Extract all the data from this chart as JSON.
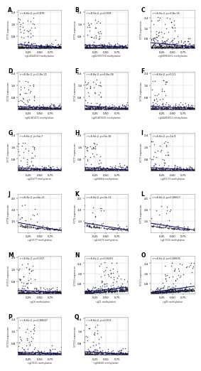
{
  "panels": [
    {
      "label": "A",
      "ann": "r²=6.6e-2, p=0.076",
      "xlabel": "cg14044540 methylation",
      "ylabel": "SYT1 expression",
      "pattern": "bottom_cluster",
      "n": 370,
      "seed": 1
    },
    {
      "label": "B",
      "ann": "r²=8.0e-2, p=0.039",
      "xlabel": "cg02393758 methylation",
      "ylabel": "SYT1 expression",
      "pattern": "bottom_cluster",
      "n": 340,
      "seed": 2
    },
    {
      "label": "C",
      "ann": "r²=6.6e-2, p=6.8e-16",
      "xlabel": "cg04991631 methylation",
      "ylabel": "SYT1 expression",
      "pattern": "spread_neg",
      "n": 370,
      "seed": 3
    },
    {
      "label": "D",
      "ann": "r²=6.4e-2, p=1.0e-11",
      "xlabel": "cg01481471 methylation",
      "ylabel": "SYT4 expression",
      "pattern": "bottom_cluster",
      "n": 340,
      "seed": 4
    },
    {
      "label": "E",
      "ann": "r²=6.6e-2, p=4.6e-06",
      "xlabel": "cg01481635 methylation",
      "ylabel": "SYT4 expression",
      "pattern": "bottom_cluster",
      "n": 340,
      "seed": 5
    },
    {
      "label": "F",
      "ann": "r²=6.6e-2, p=0.11",
      "xlabel": "cg04491651 methylation",
      "ylabel": "SYT4 expression",
      "pattern": "bottom_cluster",
      "n": 340,
      "seed": 6
    },
    {
      "label": "G",
      "ann": "r²=6.6e-2, p=5e-7",
      "xlabel": "cg21677 methylation",
      "ylabel": "SYT7 expression",
      "pattern": "bottom_cluster",
      "n": 340,
      "seed": 7
    },
    {
      "label": "H",
      "ann": "r²=6.6e-2, p=5e-16",
      "xlabel": "cg04684 methylation",
      "ylabel": "SYT7 expression",
      "pattern": "bottom_cluster",
      "n": 340,
      "seed": 8
    },
    {
      "label": "I",
      "ann": "r²=6.6e-2, p=1e-9",
      "xlabel": "cg01173 methylation",
      "ylabel": "SYT7 expression",
      "pattern": "bottom_cluster",
      "n": 340,
      "seed": 9
    },
    {
      "label": "J",
      "ann": "r²=6.2e-2, p=4e-13",
      "xlabel": "cg15177 methylation",
      "ylabel": "SYT9 expression",
      "pattern": "sparse_neg",
      "n": 100,
      "seed": 10
    },
    {
      "label": "K",
      "ann": "r²=6.6e-2, p=3e-13",
      "xlabel": "cg13473 methylation",
      "ylabel": "SYT9 expression",
      "pattern": "sparse_neg",
      "n": 100,
      "seed": 11
    },
    {
      "label": "L",
      "ann": "r²=6.6e-2, p=0.00617",
      "xlabel": "cg17155 methylation",
      "ylabel": "SYT9 expression",
      "pattern": "sparse_neg",
      "n": 100,
      "seed": 12
    },
    {
      "label": "M",
      "ann": "r²=6.6e-2, p=0.157",
      "xlabel": "cg16 methylation",
      "ylabel": "SYT11 expression",
      "pattern": "bottom_cluster",
      "n": 370,
      "seed": 13
    },
    {
      "label": "N",
      "ann": "r²=6.6e-2, p=0.0249",
      "xlabel": "cg11 methylation",
      "ylabel": "SYT11 expression",
      "pattern": "pos_spread",
      "n": 370,
      "seed": 14
    },
    {
      "label": "O",
      "ann": "r²=6.6e-2, p=0.00605",
      "xlabel": "cg05 methylation",
      "ylabel": "SYT11 expression",
      "pattern": "pos_spread",
      "n": 370,
      "seed": 15
    },
    {
      "label": "P",
      "ann": "r²=6.6e-2, p=0.00647",
      "xlabel": "cg13151 methylation",
      "ylabel": "SYT13 expression",
      "pattern": "bottom_cluster",
      "n": 340,
      "seed": 16
    },
    {
      "label": "Q",
      "ann": "r²=6.6e-2, p=0.013",
      "xlabel": "cg04640 methylation",
      "ylabel": "SYT13 expression",
      "pattern": "bottom_cluster",
      "n": 340,
      "seed": 17
    }
  ],
  "dot_color": "#1a1a2e",
  "line_color": "#00008B",
  "dot_size": 1.2,
  "dot_alpha": 0.75,
  "grid_color": "#cccccc",
  "bg_color": "#ffffff",
  "n_cols": 3,
  "n_rows": 6
}
